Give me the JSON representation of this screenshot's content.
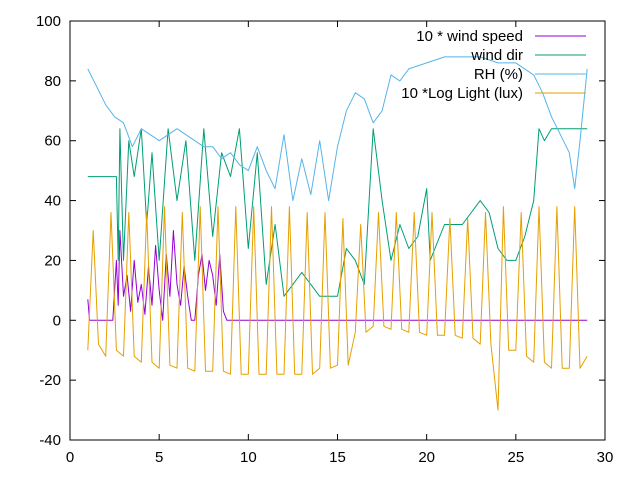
{
  "chart_data": {
    "type": "line",
    "title": "",
    "xlabel": "",
    "ylabel": "",
    "xlim": [
      0,
      30
    ],
    "ylim": [
      -40,
      100
    ],
    "xticks": [
      0,
      5,
      10,
      15,
      20,
      25,
      30
    ],
    "yticks": [
      -40,
      -20,
      0,
      20,
      40,
      60,
      80,
      100
    ],
    "grid": false,
    "legend_position": "top-right",
    "series": [
      {
        "name": "10 * wind speed",
        "color": "#9400d3",
        "x": [
          1.0,
          1.1,
          1.2,
          2.4,
          2.6,
          2.7,
          2.8,
          3.0,
          3.2,
          3.4,
          3.6,
          3.8,
          4.0,
          4.2,
          4.4,
          4.6,
          4.8,
          5.0,
          5.2,
          5.4,
          5.6,
          5.8,
          6.0,
          6.2,
          6.4,
          6.6,
          6.8,
          7.0,
          7.2,
          7.4,
          7.6,
          7.8,
          8.0,
          8.2,
          8.4,
          8.6,
          8.8,
          9.0,
          29.0
        ],
        "y": [
          7,
          0,
          0,
          0,
          20,
          5,
          30,
          8,
          15,
          3,
          20,
          6,
          12,
          2,
          18,
          5,
          25,
          10,
          0,
          22,
          8,
          30,
          12,
          5,
          18,
          8,
          0,
          0,
          15,
          22,
          10,
          20,
          15,
          5,
          22,
          3,
          0,
          0,
          0
        ]
      },
      {
        "name": "wind dir",
        "color": "#009e73",
        "x": [
          1.0,
          2.6,
          2.7,
          2.8,
          3.0,
          3.3,
          3.6,
          4.0,
          4.3,
          4.6,
          5.0,
          5.5,
          6.0,
          6.5,
          7.0,
          7.5,
          8.0,
          8.5,
          9.0,
          9.5,
          10.0,
          10.5,
          11.0,
          11.5,
          12.0,
          13.0,
          14.0,
          15.0,
          15.5,
          16.0,
          16.5,
          17.0,
          17.5,
          18.0,
          18.5,
          19.0,
          19.5,
          20.0,
          20.2,
          21.0,
          22.0,
          23.0,
          23.5,
          24.0,
          24.5,
          25.0,
          25.5,
          26.0,
          26.3,
          26.6,
          27.0,
          29.0
        ],
        "y": [
          48,
          48,
          20,
          64,
          20,
          60,
          48,
          64,
          32,
          56,
          20,
          64,
          40,
          60,
          20,
          64,
          28,
          56,
          48,
          64,
          24,
          56,
          12,
          32,
          8,
          16,
          8,
          8,
          24,
          20,
          12,
          64,
          40,
          20,
          32,
          24,
          28,
          44,
          20,
          32,
          32,
          40,
          36,
          24,
          20,
          20,
          28,
          40,
          64,
          60,
          64,
          64
        ]
      },
      {
        "name": "RH (%)",
        "color": "#56b4e9",
        "x": [
          1.0,
          1.5,
          2.0,
          2.5,
          3.0,
          3.5,
          4.0,
          4.5,
          5.0,
          5.5,
          6.0,
          6.5,
          7.0,
          7.5,
          8.0,
          8.5,
          9.0,
          9.5,
          10.0,
          10.5,
          11.0,
          11.5,
          12.0,
          12.5,
          13.0,
          13.5,
          14.0,
          14.5,
          15.0,
          15.5,
          16.0,
          16.5,
          17.0,
          17.5,
          18.0,
          18.5,
          19.0,
          20.0,
          21.0,
          22.0,
          23.0,
          24.0,
          25.0,
          26.0,
          26.5,
          27.0,
          27.5,
          28.0,
          28.3,
          28.6,
          29.0
        ],
        "y": [
          84,
          78,
          72,
          68,
          66,
          58,
          64,
          62,
          60,
          62,
          64,
          62,
          60,
          58,
          58,
          54,
          56,
          52,
          50,
          58,
          50,
          44,
          62,
          40,
          54,
          42,
          60,
          40,
          58,
          70,
          76,
          74,
          66,
          70,
          82,
          80,
          84,
          86,
          88,
          88,
          88,
          86,
          86,
          82,
          76,
          68,
          62,
          56,
          44,
          60,
          84
        ]
      },
      {
        "name": "10 *Log Light (lux)",
        "color": "#e69f00",
        "x": [
          1.0,
          1.3,
          1.6,
          2.0,
          2.3,
          2.6,
          3.0,
          3.3,
          3.6,
          4.0,
          4.3,
          4.6,
          5.0,
          5.3,
          5.6,
          6.0,
          6.3,
          6.6,
          7.0,
          7.3,
          7.6,
          8.0,
          8.3,
          8.6,
          9.0,
          9.3,
          9.6,
          10.0,
          10.3,
          10.6,
          11.0,
          11.3,
          11.6,
          12.0,
          12.3,
          12.6,
          13.0,
          13.3,
          13.6,
          14.0,
          14.3,
          14.6,
          15.0,
          15.3,
          15.6,
          16.0,
          16.3,
          16.6,
          17.0,
          17.3,
          17.6,
          18.0,
          18.3,
          18.6,
          19.0,
          19.3,
          19.6,
          20.0,
          20.3,
          20.6,
          21.0,
          21.3,
          21.6,
          22.0,
          22.3,
          22.6,
          23.0,
          23.3,
          23.6,
          24.0,
          24.3,
          24.6,
          25.0,
          25.3,
          25.6,
          26.0,
          26.3,
          26.6,
          27.0,
          27.3,
          27.6,
          28.0,
          28.3,
          28.6,
          29.0
        ],
        "y": [
          -10,
          30,
          -8,
          -12,
          36,
          -10,
          -12,
          36,
          -12,
          -14,
          36,
          -14,
          -16,
          38,
          -15,
          -16,
          36,
          -16,
          -17,
          38,
          -17,
          -17,
          38,
          -17,
          -18,
          38,
          -18,
          -18,
          38,
          -18,
          -18,
          38,
          -18,
          -18,
          38,
          -18,
          -18,
          36,
          -18,
          -16,
          36,
          -16,
          -15,
          34,
          -15,
          -4,
          32,
          -4,
          -2,
          36,
          -2,
          -3,
          36,
          -3,
          -4,
          36,
          -4,
          -5,
          36,
          -5,
          -5,
          34,
          -5,
          -6,
          34,
          -6,
          -8,
          36,
          -8,
          -30,
          38,
          -10,
          -10,
          36,
          -12,
          -14,
          38,
          -14,
          -16,
          38,
          -16,
          -16,
          38,
          -16,
          -12
        ]
      }
    ]
  }
}
